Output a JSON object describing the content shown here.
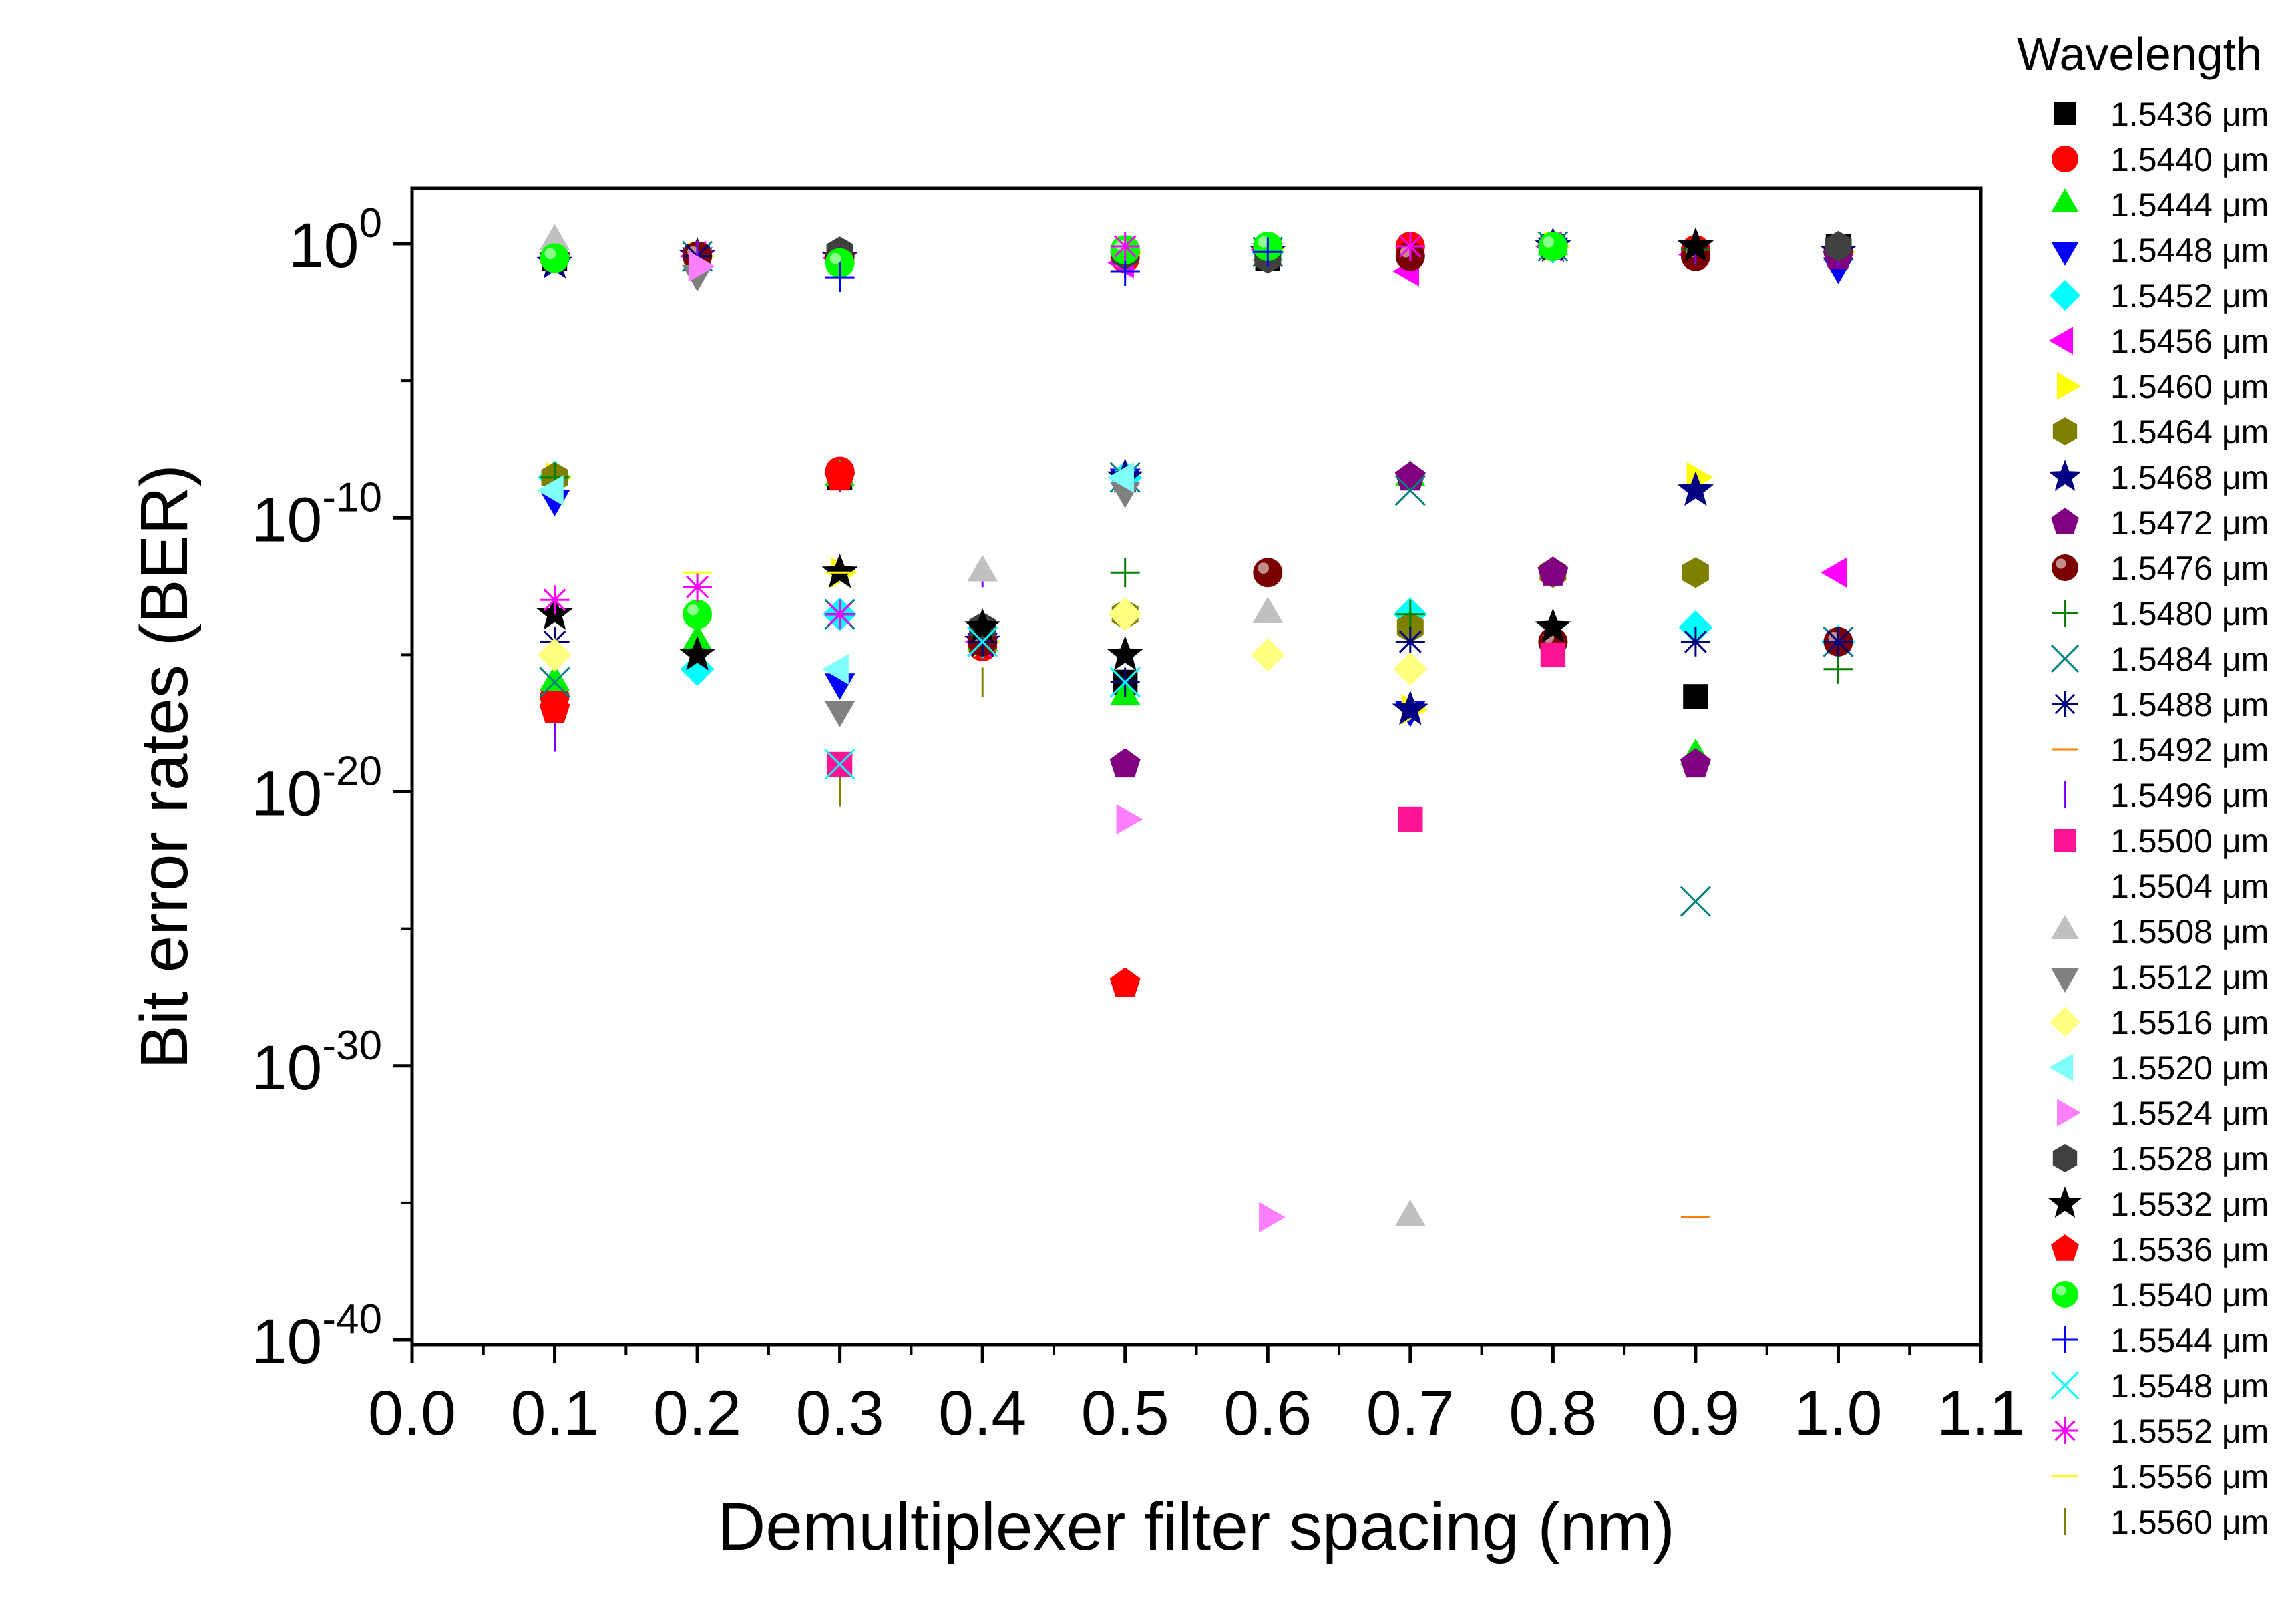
{
  "chart_data": {
    "type": "scatter",
    "xlabel": "Demultiplexer filter spacing (nm)",
    "ylabel": "Bit error rates (BER)",
    "xlim": [
      0.0,
      1.1
    ],
    "ylim": [
      1e-40,
      10
    ],
    "y_scale": "log",
    "x_ticks": [
      "0.0",
      "0.1",
      "0.2",
      "0.3",
      "0.4",
      "0.5",
      "0.6",
      "0.7",
      "0.8",
      "0.9",
      "1.0",
      "1.1"
    ],
    "y_ticks": [
      {
        "value": 1,
        "base": "10",
        "exp": "0"
      },
      {
        "value": 1e-10,
        "base": "10",
        "exp": "-10"
      },
      {
        "value": 1e-20,
        "base": "10",
        "exp": "-20"
      },
      {
        "value": 1e-30,
        "base": "10",
        "exp": "-30"
      },
      {
        "value": 1e-40,
        "base": "10",
        "exp": "-40"
      }
    ],
    "grid": false,
    "legend_position": "right",
    "legend_title": "Wavelength",
    "series": [
      {
        "name": "1.5436 μm",
        "marker": "square",
        "color": "#000000",
        "points": [
          [
            0.1,
            0.3
          ],
          [
            0.2,
            0.35
          ],
          [
            0.3,
            3e-09
          ],
          [
            0.4,
            3e-15
          ],
          [
            0.5,
            1e-16
          ],
          [
            0.6,
            0.3
          ],
          [
            0.7,
            0.5
          ],
          [
            0.8,
            0.8
          ],
          [
            0.9,
            3e-17
          ],
          [
            1.0,
            0.8
          ]
        ]
      },
      {
        "name": "1.5440 μm",
        "marker": "circle",
        "color": "#ff0000",
        "points": [
          [
            0.1,
            3e-17
          ],
          [
            0.2,
            0.35
          ],
          [
            0.3,
            5e-09
          ],
          [
            0.4,
            2e-15
          ],
          [
            0.5,
            0.3
          ],
          [
            0.6,
            0.6
          ],
          [
            0.7,
            0.8
          ],
          [
            0.8,
            0.8
          ],
          [
            0.9,
            0.6
          ],
          [
            1.0,
            0.5
          ]
        ]
      },
      {
        "name": "1.5444 μm",
        "marker": "triangle-up",
        "color": "#00ee00",
        "points": [
          [
            0.1,
            1e-16
          ],
          [
            0.2,
            3e-15
          ],
          [
            0.3,
            3e-09
          ],
          [
            0.4,
            3e-15
          ],
          [
            0.5,
            3e-17
          ],
          [
            0.6,
            0.5
          ],
          [
            0.7,
            3e-09
          ],
          [
            0.8,
            0.8
          ],
          [
            0.9,
            2e-19
          ],
          [
            1.0,
            0.5
          ]
        ]
      },
      {
        "name": "1.5448 μm",
        "marker": "triangle-down",
        "color": "#0000ff",
        "points": [
          [
            0.1,
            5e-10
          ],
          [
            0.2,
            0.35
          ],
          [
            0.3,
            1e-16
          ],
          [
            0.4,
            3e-15
          ],
          [
            0.5,
            3e-09
          ],
          [
            0.6,
            0.5
          ],
          [
            0.7,
            1e-17
          ],
          [
            0.8,
            0.8
          ],
          [
            0.9,
            0.6
          ],
          [
            1.0,
            0.15
          ]
        ]
      },
      {
        "name": "1.5452 μm",
        "marker": "diamond",
        "color": "#00ffff",
        "points": [
          [
            0.1,
            3e-09
          ],
          [
            0.2,
            3e-16
          ],
          [
            0.3,
            3e-14
          ],
          [
            0.4,
            3e-15
          ],
          [
            0.5,
            3e-09
          ],
          [
            0.6,
            0.5
          ],
          [
            0.7,
            3e-14
          ],
          [
            0.8,
            0.8
          ],
          [
            0.9,
            1e-14
          ],
          [
            1.0,
            3e-15
          ]
        ]
      },
      {
        "name": "1.5456 μm",
        "marker": "triangle-left",
        "color": "#ff00ff",
        "points": [
          [
            0.1,
            0.3
          ],
          [
            0.2,
            0.35
          ],
          [
            0.3,
            0.3
          ],
          [
            0.4,
            3e-15
          ],
          [
            0.5,
            0.2
          ],
          [
            0.6,
            0.6
          ],
          [
            0.7,
            0.1
          ],
          [
            0.8,
            0.8
          ],
          [
            0.9,
            0.4
          ],
          [
            1.0,
            1e-12
          ]
        ]
      },
      {
        "name": "1.5460 μm",
        "marker": "triangle-right",
        "color": "#ffff00",
        "points": [
          [
            0.1,
            3e-09
          ],
          [
            0.2,
            0.35
          ],
          [
            0.3,
            1e-12
          ],
          [
            0.4,
            3e-15
          ],
          [
            0.5,
            0.5
          ],
          [
            0.6,
            0.6
          ],
          [
            0.7,
            1e-17
          ],
          [
            0.8,
            0.8
          ],
          [
            0.9,
            3e-09
          ],
          [
            1.0,
            0.5
          ]
        ]
      },
      {
        "name": "1.5464 μm",
        "marker": "hexagon",
        "color": "#808000",
        "points": [
          [
            0.1,
            3e-09
          ],
          [
            0.2,
            0.35
          ],
          [
            0.3,
            0.5
          ],
          [
            0.4,
            3e-15
          ],
          [
            0.5,
            3e-14
          ],
          [
            0.6,
            0.5
          ],
          [
            0.7,
            1e-14
          ],
          [
            0.8,
            1e-12
          ],
          [
            0.9,
            1e-12
          ],
          [
            1.0,
            0.5
          ]
        ]
      },
      {
        "name": "1.5468 μm",
        "marker": "star",
        "color": "#000080",
        "points": [
          [
            0.1,
            0.2
          ],
          [
            0.2,
            0.35
          ],
          [
            0.3,
            0.3
          ],
          [
            0.4,
            3e-15
          ],
          [
            0.5,
            3e-09
          ],
          [
            0.6,
            0.5
          ],
          [
            0.7,
            1e-17
          ],
          [
            0.8,
            0.8
          ],
          [
            0.9,
            1e-09
          ],
          [
            1.0,
            0.5
          ]
        ]
      },
      {
        "name": "1.5472 μm",
        "marker": "pentagon",
        "color": "#800080",
        "points": [
          [
            0.1,
            0.3
          ],
          [
            0.2,
            0.35
          ],
          [
            0.3,
            0.3
          ],
          [
            0.4,
            3e-15
          ],
          [
            0.5,
            1e-19
          ],
          [
            0.6,
            0.5
          ],
          [
            0.7,
            3e-09
          ],
          [
            0.8,
            1e-12
          ],
          [
            0.9,
            1e-19
          ],
          [
            1.0,
            0.35
          ]
        ]
      },
      {
        "name": "1.5476 μm",
        "marker": "ball",
        "color": "#7a0000",
        "points": [
          [
            0.1,
            0.3
          ],
          [
            0.2,
            0.35
          ],
          [
            0.3,
            0.3
          ],
          [
            0.4,
            3e-15
          ],
          [
            0.5,
            0.5
          ],
          [
            0.6,
            1e-12
          ],
          [
            0.7,
            0.35
          ],
          [
            0.8,
            3e-15
          ],
          [
            0.9,
            0.35
          ],
          [
            1.0,
            3e-15
          ]
        ]
      },
      {
        "name": "1.5480 μm",
        "marker": "plus",
        "color": "#008000",
        "points": [
          [
            0.1,
            3e-09
          ],
          [
            0.2,
            0.35
          ],
          [
            0.3,
            3e-14
          ],
          [
            0.4,
            3e-15
          ],
          [
            0.5,
            1e-12
          ],
          [
            0.6,
            0.5
          ],
          [
            0.7,
            3e-14
          ],
          [
            0.8,
            0.8
          ],
          [
            0.9,
            0.6
          ],
          [
            1.0,
            3e-16
          ]
        ]
      },
      {
        "name": "1.5484 μm",
        "marker": "x",
        "color": "#008080",
        "points": [
          [
            0.1,
            1e-16
          ],
          [
            0.2,
            0.35
          ],
          [
            0.3,
            3e-14
          ],
          [
            0.4,
            3e-15
          ],
          [
            0.5,
            3e-09
          ],
          [
            0.6,
            0.5
          ],
          [
            0.7,
            1e-09
          ],
          [
            0.8,
            0.8
          ],
          [
            0.9,
            1e-24
          ],
          [
            1.0,
            3e-15
          ]
        ]
      },
      {
        "name": "1.5488 μm",
        "marker": "asterisk",
        "color": "#000080",
        "points": [
          [
            0.1,
            3e-15
          ],
          [
            0.2,
            0.35
          ],
          [
            0.3,
            3e-14
          ],
          [
            0.4,
            3e-15
          ],
          [
            0.5,
            1e-16
          ],
          [
            0.6,
            0.5
          ],
          [
            0.7,
            3e-15
          ],
          [
            0.8,
            0.8
          ],
          [
            0.9,
            3e-15
          ],
          [
            1.0,
            3e-15
          ]
        ]
      },
      {
        "name": "1.5492 μm",
        "marker": "hline",
        "color": "#ff8000",
        "points": [
          [
            0.9,
            3e-36
          ]
        ]
      },
      {
        "name": "1.5496 μm",
        "marker": "vline",
        "color": "#8000ff",
        "points": [
          [
            0.1,
            1e-18
          ],
          [
            0.2,
            0.35
          ],
          [
            0.3,
            3e-09
          ],
          [
            0.4,
            1e-12
          ],
          [
            0.5,
            0.2
          ],
          [
            0.6,
            0.6
          ],
          [
            0.7,
            0.8
          ],
          [
            0.8,
            0.8
          ],
          [
            0.9,
            0.6
          ],
          [
            1.0,
            0.5
          ]
        ]
      },
      {
        "name": "1.5500 μm",
        "marker": "square",
        "color": "#ff1493",
        "points": [
          [
            0.3,
            1e-19
          ],
          [
            0.7,
            1e-21
          ],
          [
            0.8,
            1e-15
          ]
        ]
      },
      {
        "name": "1.5504 μm",
        "marker": "none",
        "color": "#ffffff",
        "points": []
      },
      {
        "name": "1.5508 μm",
        "marker": "triangle-up",
        "color": "#c0c0c0",
        "points": [
          [
            0.1,
            1.2
          ],
          [
            0.4,
            1e-12
          ],
          [
            0.6,
            3e-14
          ],
          [
            0.7,
            3e-36
          ]
        ]
      },
      {
        "name": "1.5512 μm",
        "marker": "triangle-down",
        "color": "#808080",
        "points": [
          [
            0.2,
            0.08
          ],
          [
            0.3,
            1e-17
          ],
          [
            0.5,
            1e-09
          ],
          [
            0.6,
            0.5
          ]
        ]
      },
      {
        "name": "1.5516 μm",
        "marker": "diamond",
        "color": "#ffff80",
        "points": [
          [
            0.1,
            1e-15
          ],
          [
            0.5,
            3e-14
          ],
          [
            0.6,
            1e-15
          ],
          [
            0.7,
            3e-16
          ]
        ]
      },
      {
        "name": "1.5520 μm",
        "marker": "triangle-left",
        "color": "#80ffff",
        "points": [
          [
            0.1,
            1e-09
          ],
          [
            0.3,
            3e-16
          ],
          [
            0.5,
            3e-09
          ]
        ]
      },
      {
        "name": "1.5524 μm",
        "marker": "triangle-right",
        "color": "#ff80ff",
        "points": [
          [
            0.2,
            0.15
          ],
          [
            0.5,
            1e-21
          ],
          [
            0.6,
            3e-36
          ]
        ]
      },
      {
        "name": "1.5528 μm",
        "marker": "hexagon",
        "color": "#404040",
        "points": [
          [
            0.3,
            0.5
          ],
          [
            0.4,
            1e-14
          ],
          [
            0.5,
            0.4
          ],
          [
            0.6,
            0.3
          ],
          [
            1.0,
            0.8
          ]
        ]
      },
      {
        "name": "1.5532 μm",
        "marker": "star",
        "color": "#000000",
        "points": [
          [
            0.1,
            3e-14
          ],
          [
            0.2,
            1e-15
          ],
          [
            0.3,
            1e-12
          ],
          [
            0.4,
            1e-14
          ],
          [
            0.5,
            1e-15
          ],
          [
            0.8,
            1e-14
          ],
          [
            0.9,
            0.8
          ]
        ]
      },
      {
        "name": "1.5536 μm",
        "marker": "pentagon",
        "color": "#ff0000",
        "points": [
          [
            0.1,
            1e-17
          ],
          [
            0.3,
            3e-09
          ],
          [
            0.5,
            1e-27
          ]
        ]
      },
      {
        "name": "1.5540 μm",
        "marker": "ball",
        "color": "#00ff00",
        "points": [
          [
            0.1,
            0.3
          ],
          [
            0.2,
            3e-14
          ],
          [
            0.3,
            0.2
          ],
          [
            0.5,
            0.6
          ],
          [
            0.6,
            0.8
          ],
          [
            0.8,
            0.8
          ]
        ]
      },
      {
        "name": "1.5544 μm",
        "marker": "plus",
        "color": "#0000ff",
        "points": [
          [
            0.3,
            0.06
          ],
          [
            0.5,
            0.1
          ],
          [
            0.6,
            0.5
          ]
        ]
      },
      {
        "name": "1.5548 μm",
        "marker": "x",
        "color": "#00ffff",
        "points": [
          [
            0.3,
            1e-19
          ],
          [
            0.4,
            3e-15
          ],
          [
            0.5,
            1e-16
          ]
        ]
      },
      {
        "name": "1.5552 μm",
        "marker": "asterisk",
        "color": "#ff00ff",
        "points": [
          [
            0.1,
            1e-13
          ],
          [
            0.2,
            3e-13
          ],
          [
            0.3,
            3e-14
          ],
          [
            0.5,
            0.8
          ],
          [
            0.7,
            0.8
          ]
        ]
      },
      {
        "name": "1.5556 μm",
        "marker": "hline",
        "color": "#ffff00",
        "points": [
          [
            0.2,
            1e-12
          ],
          [
            0.3,
            1e-12
          ]
        ]
      },
      {
        "name": "1.5560 μm",
        "marker": "vline",
        "color": "#808000",
        "points": [
          [
            0.3,
            1e-20
          ],
          [
            0.4,
            1e-16
          ]
        ]
      }
    ]
  }
}
